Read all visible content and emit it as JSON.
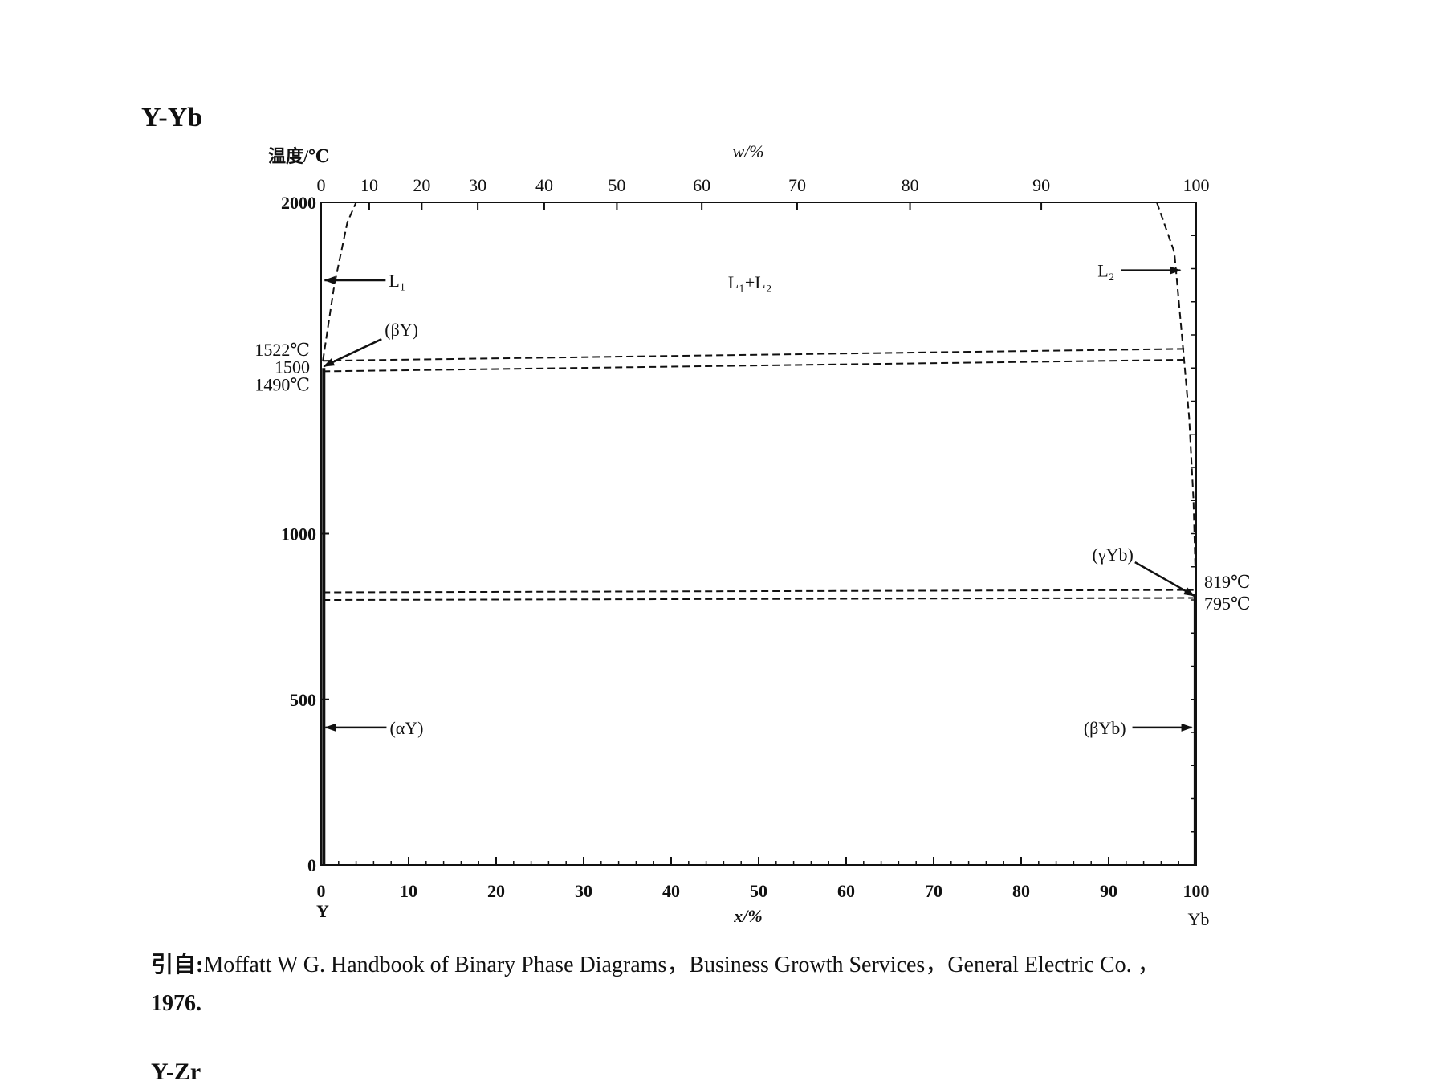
{
  "heading": "Y-Yb",
  "citation": {
    "lead": "引自:",
    "text": "Moffatt W G.  Handbook of Binary Phase Diagrams，Business Growth Services，General Electric Co. ，",
    "year": "1976."
  },
  "next_heading": "Y-Zr",
  "chart_data": {
    "type": "line",
    "title": "",
    "ylabel": "温度/℃",
    "xlabel": "x/%",
    "top_axis_label": "w/%",
    "ylim": [
      0,
      2000
    ],
    "xlim": [
      0,
      100
    ],
    "y_ticks": [
      0,
      500,
      1000,
      2000
    ],
    "y_tick_labels": [
      "0",
      "500",
      "1000",
      "2000"
    ],
    "x_ticks": [
      0,
      10,
      20,
      30,
      40,
      50,
      60,
      70,
      80,
      90,
      100
    ],
    "x_tick_labels": [
      "0",
      "10",
      "20",
      "30",
      "40",
      "50",
      "60",
      "70",
      "80",
      "90",
      "100"
    ],
    "top_ticks": [
      {
        "label": "0",
        "x": 0
      },
      {
        "label": "10",
        "x": 5.5
      },
      {
        "label": "20",
        "x": 11.5
      },
      {
        "label": "30",
        "x": 17.9
      },
      {
        "label": "40",
        "x": 25.5
      },
      {
        "label": "50",
        "x": 33.8
      },
      {
        "label": "60",
        "x": 43.5
      },
      {
        "label": "70",
        "x": 54.4
      },
      {
        "label": "80",
        "x": 67.3
      },
      {
        "label": "90",
        "x": 82.3
      },
      {
        "label": "100",
        "x": 100
      }
    ],
    "left_end_label": "Y",
    "right_end_label": "Yb",
    "special_temperatures": [
      {
        "label": "1522℃",
        "value": 1522,
        "side": "left"
      },
      {
        "label": "1500",
        "value": 1500,
        "side": "left"
      },
      {
        "label": "1490℃",
        "value": 1490,
        "side": "left"
      },
      {
        "label": "819℃",
        "value": 819,
        "side": "right"
      },
      {
        "label": "795℃",
        "value": 795,
        "side": "right"
      }
    ],
    "series": [
      {
        "style": "dashed",
        "x": [
          0.2,
          1.5,
          3.0,
          4.0
        ],
        "y": [
          1522,
          1750,
          1940,
          2000
        ]
      },
      {
        "style": "dashed",
        "x": [
          95.5,
          97.5,
          98.5,
          99.2,
          99.7,
          99.9
        ],
        "y": [
          2000,
          1850,
          1560,
          1350,
          1100,
          900
        ]
      },
      {
        "style": "dashed",
        "x": [
          0.2,
          99
        ],
        "y": [
          1522,
          1558
        ]
      },
      {
        "style": "dashed",
        "x": [
          0.2,
          99
        ],
        "y": [
          1490,
          1525
        ]
      },
      {
        "style": "dashed",
        "x": [
          0.2,
          99.7
        ],
        "y": [
          823,
          830
        ]
      },
      {
        "style": "dashed",
        "x": [
          0.2,
          99.7
        ],
        "y": [
          800,
          806
        ]
      },
      {
        "style": "solid",
        "x": [
          0.3,
          0.3
        ],
        "y": [
          0,
          1500
        ]
      },
      {
        "style": "solid",
        "x": [
          99.9,
          99.9
        ],
        "y": [
          0,
          819
        ]
      }
    ],
    "annotations": [
      {
        "text": "L₁",
        "arrow_to": [
          0.4,
          1765
        ],
        "side": "left"
      },
      {
        "text": "L₁+L₂",
        "at": [
          49,
          1760
        ]
      },
      {
        "text": "L₂",
        "arrow_to": [
          98.2,
          1795
        ],
        "side": "right"
      },
      {
        "text": "(βY)",
        "arrow_to": [
          0.3,
          1505
        ],
        "side": "left"
      },
      {
        "text": "(γYb)",
        "arrow_to": [
          99.8,
          812
        ],
        "side": "right"
      },
      {
        "text": "(αY)",
        "arrow_to": [
          0.5,
          415
        ],
        "side": "left"
      },
      {
        "text": "(βYb)",
        "arrow_to": [
          99.5,
          415
        ],
        "side": "right"
      }
    ]
  }
}
